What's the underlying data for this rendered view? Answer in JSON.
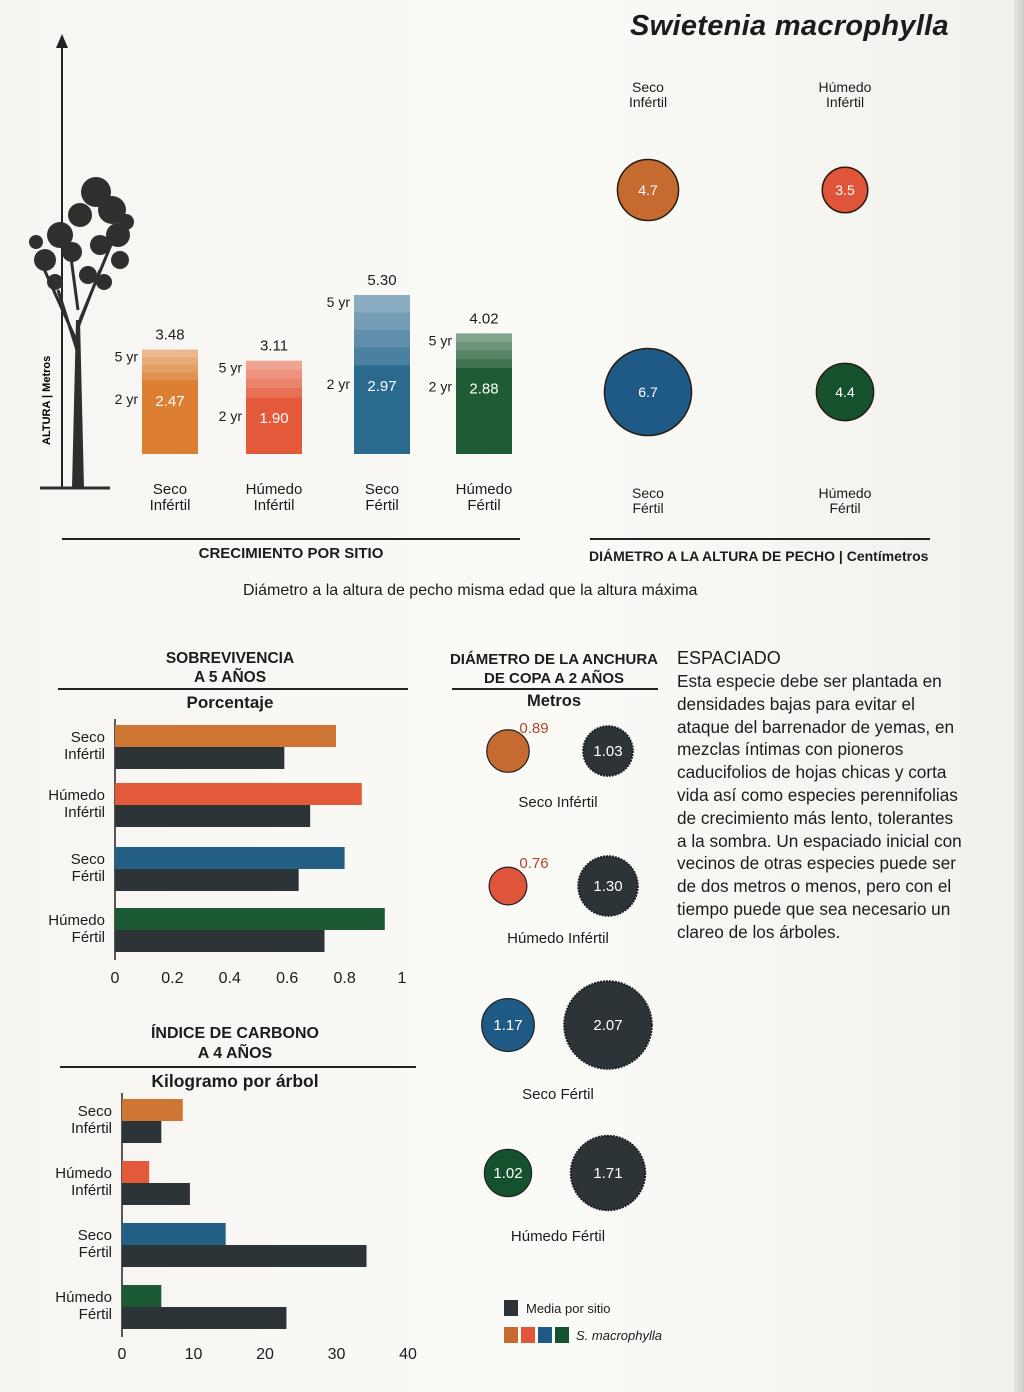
{
  "species": "Swietenia macrophylla",
  "chart_data": [
    {
      "id": "growth",
      "type": "bar",
      "title": "CRECIMIENTO POR SITIO",
      "ylabel": "ALTURA | Metros",
      "categories": [
        "Seco\nInfértil",
        "Húmedo\nInfértil",
        "Seco\nFértil",
        "Húmedo\nFértil"
      ],
      "series": [
        {
          "name": "2 yr",
          "values": [
            2.47,
            1.9,
            2.97,
            2.88
          ]
        },
        {
          "name": "5 yr",
          "values": [
            3.48,
            3.11,
            5.3,
            4.02
          ]
        }
      ],
      "colors": [
        "#dc7f33",
        "#e4593a",
        "#2a6a8f",
        "#1e5a32"
      ]
    },
    {
      "id": "dap",
      "type": "bubble",
      "title": "DIÁMETRO A LA ALTURA DE PECHO",
      "unit": "Centímetros",
      "points": [
        {
          "label": "Seco\nInfértil",
          "value": 4.7,
          "color": "#c56a31"
        },
        {
          "label": "Húmedo\nInfértil",
          "value": 3.5,
          "color": "#e0553a"
        },
        {
          "label": "Seco\nFértil",
          "value": 6.7,
          "color": "#1f5a86"
        },
        {
          "label": "Húmedo\nFértil",
          "value": 4.4,
          "color": "#16512e"
        }
      ]
    },
    {
      "id": "survival",
      "type": "bar",
      "orientation": "horizontal",
      "title": "SOBREVIVENCIA\nA 5 AÑOS",
      "subtitle": "Porcentaje",
      "categories": [
        "Seco\nInfértil",
        "Húmedo\nInfértil",
        "Seco\nFértil",
        "Húmedo\nFértil"
      ],
      "series": [
        {
          "name": "S. macrophylla",
          "values": [
            0.77,
            0.86,
            0.8,
            0.94
          ],
          "colors": [
            "#cf7534",
            "#e35a3b",
            "#245f86",
            "#1c5a35"
          ]
        },
        {
          "name": "Media por sitio",
          "values": [
            0.59,
            0.68,
            0.64,
            0.73
          ],
          "color": "#2c3438"
        }
      ],
      "xlim": [
        0,
        1
      ],
      "xticks": [
        "0",
        "0.2",
        "0.4",
        "0.6",
        "0.8",
        "1"
      ]
    },
    {
      "id": "carbon",
      "type": "bar",
      "orientation": "horizontal",
      "title": "ÍNDICE DE CARBONO\nA 4 AÑOS",
      "subtitle": "Kilogramo por árbol",
      "categories": [
        "Seco\nInfértil",
        "Húmedo\nInfértil",
        "Seco\nFértil",
        "Húmedo\nFértil"
      ],
      "series": [
        {
          "name": "S. macrophylla",
          "values": [
            8.5,
            3.8,
            14.5,
            5.5
          ],
          "colors": [
            "#cf7534",
            "#e35a3b",
            "#245f86",
            "#1c5a35"
          ]
        },
        {
          "name": "Media por sitio",
          "values": [
            5.5,
            9.5,
            34.2,
            23.0
          ],
          "color": "#2c3438"
        }
      ],
      "xlim": [
        0,
        40
      ],
      "xticks": [
        "0",
        "10",
        "20",
        "30",
        "40"
      ]
    },
    {
      "id": "crown",
      "type": "bubble",
      "title": "DIÁMETRO DE LA ANCHURA\nDE COPA A 2 AÑOS",
      "subtitle": "Metros",
      "groups": [
        {
          "label": "Seco Infértil",
          "species": 0.89,
          "mean": 1.03,
          "color": "#c56a31"
        },
        {
          "label": "Húmedo Infértil",
          "species": 0.76,
          "mean": 1.3,
          "color": "#e0553a"
        },
        {
          "label": "Seco Fértil",
          "species": 1.17,
          "mean": 2.07,
          "color": "#1f5a86"
        },
        {
          "label": "Húmedo Fértil",
          "species": 1.02,
          "mean": 1.71,
          "color": "#16512e"
        }
      ],
      "legend": [
        "Media por sitio",
        "S. macrophylla"
      ]
    }
  ],
  "notes": {
    "dap_caption": "Diámetro a la altura de pecho misma edad que la altura máxima"
  },
  "spacing": {
    "title": "ESPACIADO",
    "body": "Esta especie debe ser plantada en densidades bajas para evitar el ataque del barrenador de yemas, en mezclas íntimas con pioneros caducifolios de hojas chicas y corta vida así como especies perennifolias de crecimiento más lento, tolerantes a la sombra. Un espaciado inicial con vecinos de otras especies puede ser de dos metros o menos, pero con el tiempo puede que sea necesario un clareo de los árboles."
  }
}
